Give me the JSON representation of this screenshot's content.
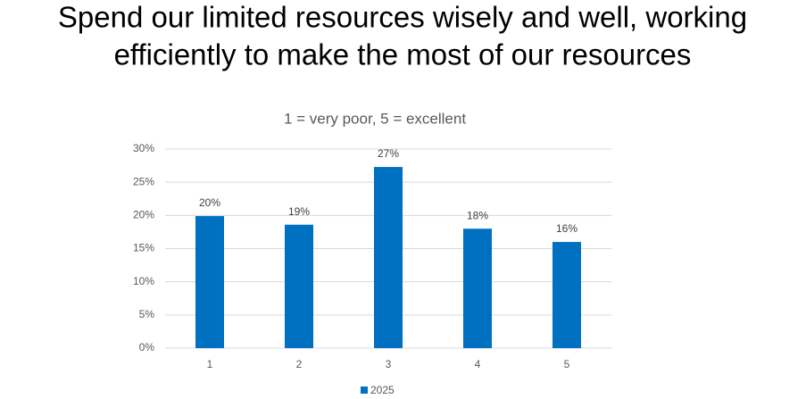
{
  "chart_data": {
    "type": "bar",
    "title": [
      "Spend our limited resources wisely and well, working",
      "efficiently to make the most of our resources"
    ],
    "subtitle": "1 = very poor, 5 = excellent",
    "categories": [
      "1",
      "2",
      "3",
      "4",
      "5"
    ],
    "series": [
      {
        "name": "2025",
        "color": "#0070c0",
        "values": [
          19.9,
          18.6,
          27.3,
          18.0,
          16.0
        ],
        "value_labels": [
          "20%",
          "19%",
          "27%",
          "18%",
          "16%"
        ]
      }
    ],
    "ylim": [
      0,
      30
    ],
    "yticks": [
      {
        "value": 0,
        "label": "0%"
      },
      {
        "value": 5,
        "label": "5%"
      },
      {
        "value": 10,
        "label": "10%"
      },
      {
        "value": 15,
        "label": "15%"
      },
      {
        "value": 20,
        "label": "20%"
      },
      {
        "value": 25,
        "label": "25%"
      },
      {
        "value": 30,
        "label": "30%"
      }
    ],
    "grid": true,
    "legend": "bottom"
  }
}
